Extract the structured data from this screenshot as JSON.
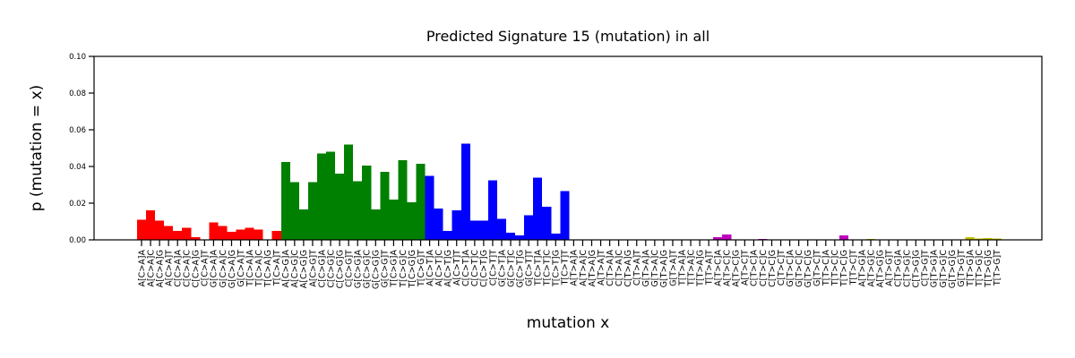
{
  "chart_data": {
    "type": "bar",
    "title": "Predicted Signature 15 (mutation) in all",
    "xlabel": "mutation x",
    "ylabel": "p (mutation = x)",
    "ylim": [
      0,
      0.1
    ],
    "yticks": [
      "0.00",
      "0.02",
      "0.04",
      "0.06",
      "0.08",
      "0.10"
    ],
    "ytick_values": [
      0,
      0.02,
      0.04,
      0.06,
      0.08,
      0.1
    ],
    "grid": false,
    "colors": [
      "#ff0000",
      "#008000",
      "#0000ff",
      "#808080",
      "#bf00bf",
      "#bfbf00"
    ],
    "categories": [
      "A[C>A]A",
      "A[C>A]C",
      "A[C>A]G",
      "A[C>A]T",
      "C[C>A]A",
      "C[C>A]C",
      "C[C>A]G",
      "C[C>A]T",
      "G[C>A]A",
      "G[C>A]C",
      "G[C>A]G",
      "G[C>A]T",
      "T[C>A]A",
      "T[C>A]C",
      "T[C>A]G",
      "T[C>A]T",
      "A[C>G]A",
      "A[C>G]C",
      "A[C>G]G",
      "A[C>G]T",
      "C[C>G]A",
      "C[C>G]C",
      "C[C>G]G",
      "C[C>G]T",
      "G[C>G]A",
      "G[C>G]C",
      "G[C>G]G",
      "G[C>G]T",
      "T[C>G]A",
      "T[C>G]C",
      "T[C>G]G",
      "T[C>G]T",
      "A[C>T]A",
      "A[C>T]C",
      "A[C>T]G",
      "A[C>T]T",
      "C[C>T]A",
      "C[C>T]C",
      "C[C>T]G",
      "C[C>T]T",
      "G[C>T]A",
      "G[C>T]C",
      "G[C>T]G",
      "G[C>T]T",
      "T[C>T]A",
      "T[C>T]C",
      "T[C>T]G",
      "T[C>T]T",
      "A[T>A]A",
      "A[T>A]C",
      "A[T>A]G",
      "A[T>A]T",
      "C[T>A]A",
      "C[T>A]C",
      "C[T>A]G",
      "C[T>A]T",
      "G[T>A]A",
      "G[T>A]C",
      "G[T>A]G",
      "G[T>A]T",
      "T[T>A]A",
      "T[T>A]C",
      "T[T>A]G",
      "T[T>A]T",
      "A[T>C]A",
      "A[T>C]C",
      "A[T>C]G",
      "A[T>C]T",
      "C[T>C]A",
      "C[T>C]C",
      "C[T>C]G",
      "C[T>C]T",
      "G[T>C]A",
      "G[T>C]C",
      "G[T>C]G",
      "G[T>C]T",
      "T[T>C]A",
      "T[T>C]C",
      "T[T>C]G",
      "T[T>C]T",
      "A[T>G]A",
      "A[T>G]C",
      "A[T>G]G",
      "A[T>G]T",
      "C[T>G]A",
      "C[T>G]C",
      "C[T>G]G",
      "C[T>G]T",
      "G[T>G]A",
      "G[T>G]C",
      "G[T>G]G",
      "G[T>G]T",
      "T[T>G]A",
      "T[T>G]C",
      "T[T>G]G",
      "T[T>G]T"
    ],
    "values": [
      0.011,
      0.016,
      0.0105,
      0.0075,
      0.005,
      0.0065,
      0.0015,
      0.0,
      0.0095,
      0.0075,
      0.0045,
      0.0055,
      0.0065,
      0.0055,
      0.0,
      0.005,
      0.0425,
      0.0315,
      0.0165,
      0.0315,
      0.047,
      0.048,
      0.036,
      0.052,
      0.032,
      0.0405,
      0.0165,
      0.037,
      0.022,
      0.0435,
      0.0205,
      0.0415,
      0.035,
      0.017,
      0.005,
      0.016,
      0.0525,
      0.0105,
      0.0105,
      0.0325,
      0.0115,
      0.004,
      0.0025,
      0.0135,
      0.034,
      0.018,
      0.0035,
      0.0265,
      0,
      0,
      0,
      0,
      0,
      0,
      0,
      0,
      0,
      0,
      0,
      0,
      0,
      0,
      0,
      0,
      0.0015,
      0.003,
      0.0003,
      0,
      0,
      0.0005,
      0.0003,
      0,
      0,
      0,
      0,
      0,
      0,
      0,
      0.0025,
      0,
      0,
      0.0005,
      0,
      0,
      0,
      0,
      0,
      0,
      0,
      0.0003,
      0,
      0,
      0.0015,
      0.0008,
      0.001,
      0.0008
    ]
  }
}
